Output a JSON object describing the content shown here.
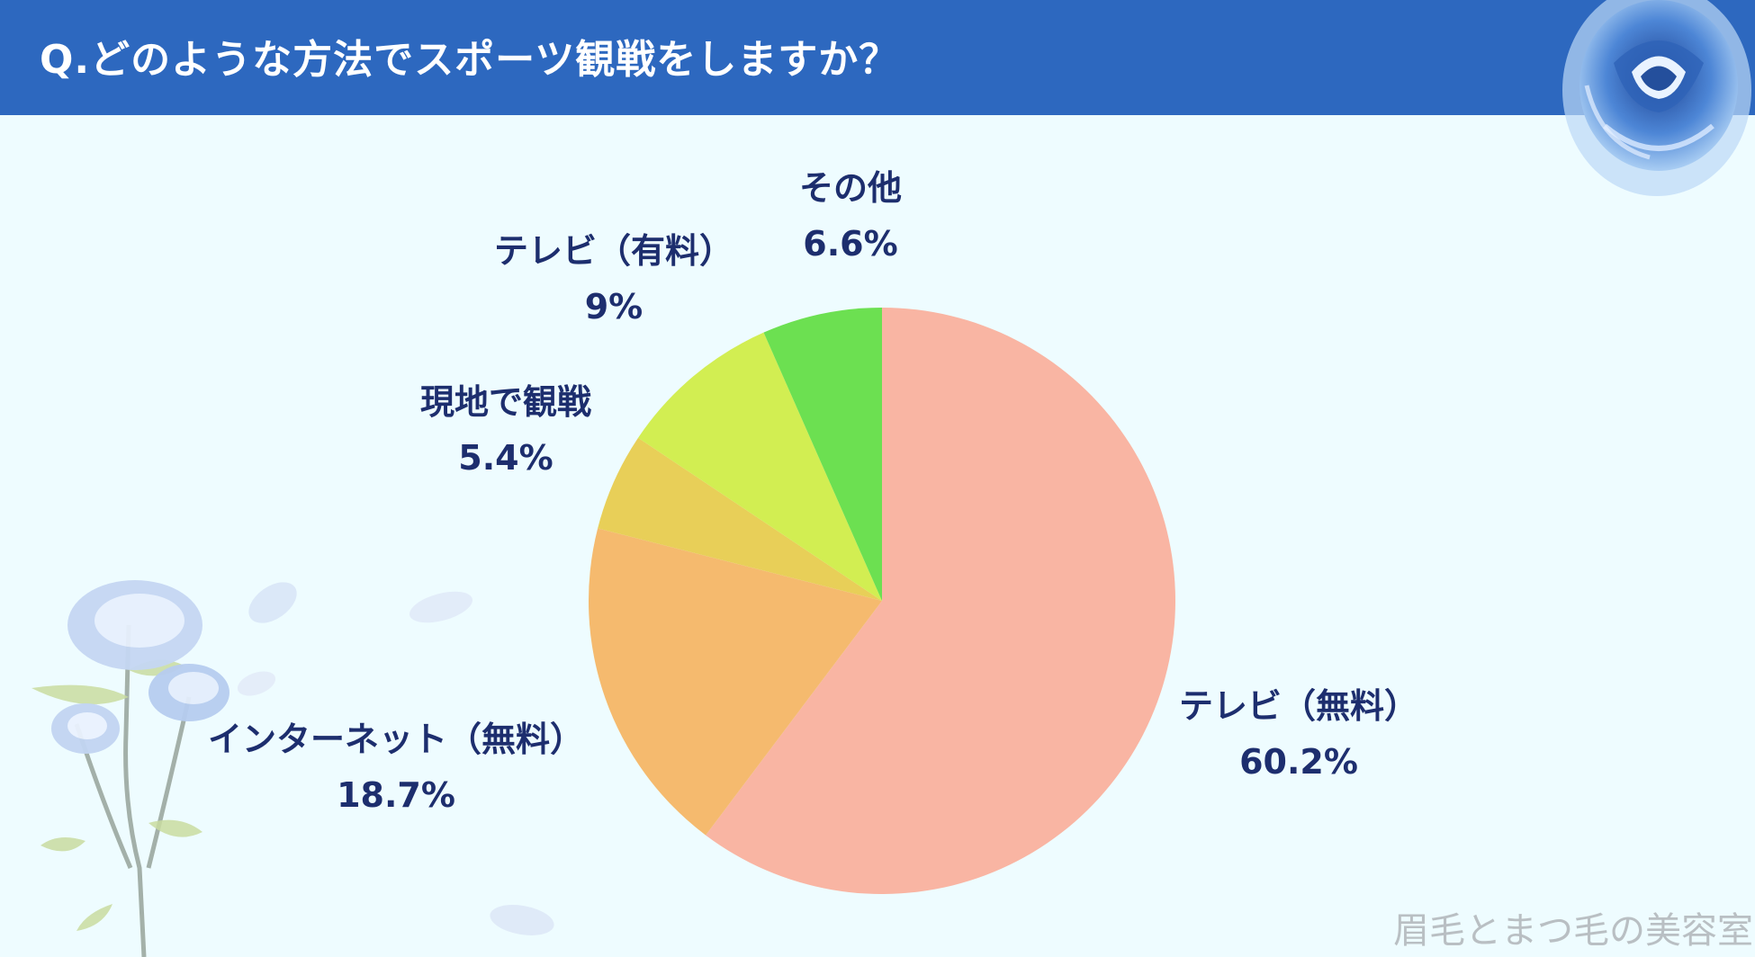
{
  "header": {
    "title": "Q.どのような方法でスポーツ観戦をしますか？",
    "color": "#2d68bf"
  },
  "chart_data": {
    "type": "pie",
    "title": "Q.どのような方法でスポーツ観戦をしますか？",
    "start_angle": "12 o'clock, clockwise",
    "slices": [
      {
        "label": "テレビ（無料）",
        "value": 60.2,
        "value_label": "60.2%",
        "color": "#f9b5a3"
      },
      {
        "label": "インターネット（無料）",
        "value": 18.7,
        "value_label": "18.7%",
        "color": "#f5ba6e"
      },
      {
        "label": "現地で観戦",
        "value": 5.4,
        "value_label": "5.4%",
        "color": "#e8cf58"
      },
      {
        "label": "テレビ（有料）",
        "value": 9,
        "value_label": "9%",
        "color": "#d2ee52"
      },
      {
        "label": "その他",
        "value": 6.6,
        "value_label": "6.6%",
        "color": "#6ce051"
      }
    ],
    "label_color": "#1d2e6e"
  },
  "footer": {
    "watermark": "眉毛とまつ毛の美容室"
  },
  "decorations": {
    "top_right": "blue-rose-icon",
    "bottom_left": "blue-rose-stem-icon"
  }
}
